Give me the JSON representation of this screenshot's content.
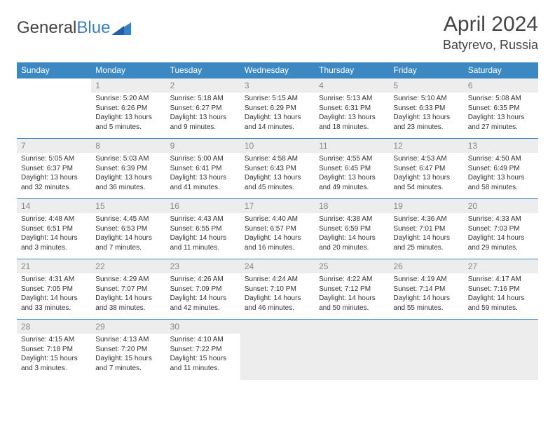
{
  "brand": {
    "part1": "General",
    "part2": "Blue"
  },
  "title": "April 2024",
  "location": "Batyrevo, Russia",
  "colors": {
    "header_bg": "#3b88c3",
    "header_text": "#ffffff",
    "daynum_bg": "#ededed",
    "daynum_text": "#888888",
    "body_text": "#333333",
    "rule": "#3b88c3",
    "page_bg": "#ffffff"
  },
  "day_headers": [
    "Sunday",
    "Monday",
    "Tuesday",
    "Wednesday",
    "Thursday",
    "Friday",
    "Saturday"
  ],
  "weeks": [
    [
      {
        "n": "",
        "sr": "",
        "ss": "",
        "dl": ""
      },
      {
        "n": "1",
        "sr": "Sunrise: 5:20 AM",
        "ss": "Sunset: 6:26 PM",
        "dl": "Daylight: 13 hours and 5 minutes."
      },
      {
        "n": "2",
        "sr": "Sunrise: 5:18 AM",
        "ss": "Sunset: 6:27 PM",
        "dl": "Daylight: 13 hours and 9 minutes."
      },
      {
        "n": "3",
        "sr": "Sunrise: 5:15 AM",
        "ss": "Sunset: 6:29 PM",
        "dl": "Daylight: 13 hours and 14 minutes."
      },
      {
        "n": "4",
        "sr": "Sunrise: 5:13 AM",
        "ss": "Sunset: 6:31 PM",
        "dl": "Daylight: 13 hours and 18 minutes."
      },
      {
        "n": "5",
        "sr": "Sunrise: 5:10 AM",
        "ss": "Sunset: 6:33 PM",
        "dl": "Daylight: 13 hours and 23 minutes."
      },
      {
        "n": "6",
        "sr": "Sunrise: 5:08 AM",
        "ss": "Sunset: 6:35 PM",
        "dl": "Daylight: 13 hours and 27 minutes."
      }
    ],
    [
      {
        "n": "7",
        "sr": "Sunrise: 5:05 AM",
        "ss": "Sunset: 6:37 PM",
        "dl": "Daylight: 13 hours and 32 minutes."
      },
      {
        "n": "8",
        "sr": "Sunrise: 5:03 AM",
        "ss": "Sunset: 6:39 PM",
        "dl": "Daylight: 13 hours and 36 minutes."
      },
      {
        "n": "9",
        "sr": "Sunrise: 5:00 AM",
        "ss": "Sunset: 6:41 PM",
        "dl": "Daylight: 13 hours and 41 minutes."
      },
      {
        "n": "10",
        "sr": "Sunrise: 4:58 AM",
        "ss": "Sunset: 6:43 PM",
        "dl": "Daylight: 13 hours and 45 minutes."
      },
      {
        "n": "11",
        "sr": "Sunrise: 4:55 AM",
        "ss": "Sunset: 6:45 PM",
        "dl": "Daylight: 13 hours and 49 minutes."
      },
      {
        "n": "12",
        "sr": "Sunrise: 4:53 AM",
        "ss": "Sunset: 6:47 PM",
        "dl": "Daylight: 13 hours and 54 minutes."
      },
      {
        "n": "13",
        "sr": "Sunrise: 4:50 AM",
        "ss": "Sunset: 6:49 PM",
        "dl": "Daylight: 13 hours and 58 minutes."
      }
    ],
    [
      {
        "n": "14",
        "sr": "Sunrise: 4:48 AM",
        "ss": "Sunset: 6:51 PM",
        "dl": "Daylight: 14 hours and 3 minutes."
      },
      {
        "n": "15",
        "sr": "Sunrise: 4:45 AM",
        "ss": "Sunset: 6:53 PM",
        "dl": "Daylight: 14 hours and 7 minutes."
      },
      {
        "n": "16",
        "sr": "Sunrise: 4:43 AM",
        "ss": "Sunset: 6:55 PM",
        "dl": "Daylight: 14 hours and 11 minutes."
      },
      {
        "n": "17",
        "sr": "Sunrise: 4:40 AM",
        "ss": "Sunset: 6:57 PM",
        "dl": "Daylight: 14 hours and 16 minutes."
      },
      {
        "n": "18",
        "sr": "Sunrise: 4:38 AM",
        "ss": "Sunset: 6:59 PM",
        "dl": "Daylight: 14 hours and 20 minutes."
      },
      {
        "n": "19",
        "sr": "Sunrise: 4:36 AM",
        "ss": "Sunset: 7:01 PM",
        "dl": "Daylight: 14 hours and 25 minutes."
      },
      {
        "n": "20",
        "sr": "Sunrise: 4:33 AM",
        "ss": "Sunset: 7:03 PM",
        "dl": "Daylight: 14 hours and 29 minutes."
      }
    ],
    [
      {
        "n": "21",
        "sr": "Sunrise: 4:31 AM",
        "ss": "Sunset: 7:05 PM",
        "dl": "Daylight: 14 hours and 33 minutes."
      },
      {
        "n": "22",
        "sr": "Sunrise: 4:29 AM",
        "ss": "Sunset: 7:07 PM",
        "dl": "Daylight: 14 hours and 38 minutes."
      },
      {
        "n": "23",
        "sr": "Sunrise: 4:26 AM",
        "ss": "Sunset: 7:09 PM",
        "dl": "Daylight: 14 hours and 42 minutes."
      },
      {
        "n": "24",
        "sr": "Sunrise: 4:24 AM",
        "ss": "Sunset: 7:10 PM",
        "dl": "Daylight: 14 hours and 46 minutes."
      },
      {
        "n": "25",
        "sr": "Sunrise: 4:22 AM",
        "ss": "Sunset: 7:12 PM",
        "dl": "Daylight: 14 hours and 50 minutes."
      },
      {
        "n": "26",
        "sr": "Sunrise: 4:19 AM",
        "ss": "Sunset: 7:14 PM",
        "dl": "Daylight: 14 hours and 55 minutes."
      },
      {
        "n": "27",
        "sr": "Sunrise: 4:17 AM",
        "ss": "Sunset: 7:16 PM",
        "dl": "Daylight: 14 hours and 59 minutes."
      }
    ],
    [
      {
        "n": "28",
        "sr": "Sunrise: 4:15 AM",
        "ss": "Sunset: 7:18 PM",
        "dl": "Daylight: 15 hours and 3 minutes."
      },
      {
        "n": "29",
        "sr": "Sunrise: 4:13 AM",
        "ss": "Sunset: 7:20 PM",
        "dl": "Daylight: 15 hours and 7 minutes."
      },
      {
        "n": "30",
        "sr": "Sunrise: 4:10 AM",
        "ss": "Sunset: 7:22 PM",
        "dl": "Daylight: 15 hours and 11 minutes."
      },
      {
        "n": "",
        "sr": "",
        "ss": "",
        "dl": "",
        "trailing": true
      },
      {
        "n": "",
        "sr": "",
        "ss": "",
        "dl": "",
        "trailing": true
      },
      {
        "n": "",
        "sr": "",
        "ss": "",
        "dl": "",
        "trailing": true
      },
      {
        "n": "",
        "sr": "",
        "ss": "",
        "dl": "",
        "trailing": true
      }
    ]
  ]
}
